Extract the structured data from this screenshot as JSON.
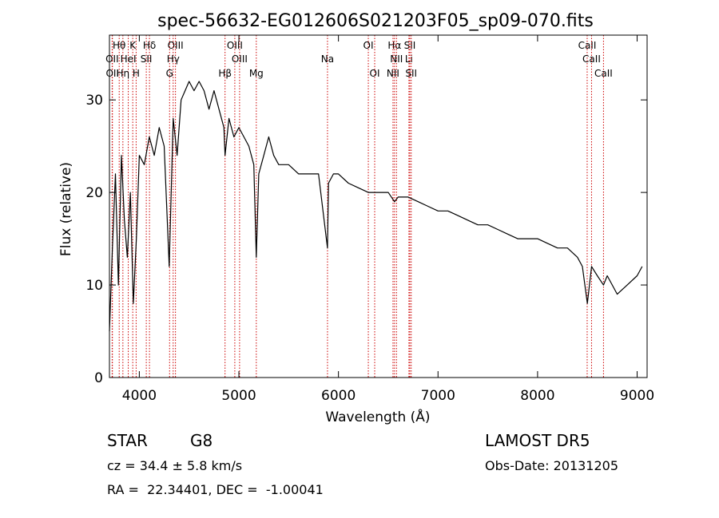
{
  "chart_data": {
    "type": "line",
    "title": "spec-56632-EG012606S021203F05_sp09-070.fits",
    "xlabel": "Wavelength (Å)",
    "ylabel": "Flux (relative)",
    "xlim": [
      3700,
      9100
    ],
    "ylim": [
      0,
      37
    ],
    "xticks": [
      4000,
      5000,
      6000,
      7000,
      8000,
      9000
    ],
    "yticks": [
      0,
      10,
      20,
      30
    ],
    "grid": false,
    "series": [
      {
        "x": [
          3700,
          3730,
          3760,
          3790,
          3820,
          3850,
          3880,
          3910,
          3940,
          3970,
          4000,
          4050,
          4100,
          4150,
          4200,
          4250,
          4300,
          4340,
          4380,
          4420,
          4460,
          4500,
          4550,
          4600,
          4650,
          4700,
          4750,
          4800,
          4850,
          4861,
          4900,
          4950,
          5000,
          5050,
          5100,
          5150,
          5175,
          5200,
          5250,
          5300,
          5350,
          5400,
          5500,
          5600,
          5700,
          5800,
          5890,
          5900,
          5950,
          6000,
          6100,
          6200,
          6300,
          6400,
          6500,
          6563,
          6600,
          6700,
          6800,
          6900,
          7000,
          7100,
          7200,
          7300,
          7400,
          7500,
          7600,
          7700,
          7800,
          7900,
          8000,
          8100,
          8200,
          8300,
          8400,
          8450,
          8500,
          8542,
          8600,
          8662,
          8700,
          8800,
          8900,
          9000,
          9050
        ],
        "y": [
          5,
          14,
          22,
          10,
          24,
          17,
          13,
          20,
          8,
          15,
          24,
          23,
          26,
          24,
          27,
          25,
          12,
          28,
          24,
          30,
          31,
          32,
          31,
          32,
          31,
          29,
          31,
          29,
          27,
          24,
          28,
          26,
          27,
          26,
          25,
          23,
          13,
          22,
          24,
          26,
          24,
          23,
          23,
          22,
          22,
          22,
          14,
          21,
          22,
          22,
          21,
          20.5,
          20,
          20,
          20,
          19,
          19.5,
          19.5,
          19,
          18.5,
          18,
          18,
          17.5,
          17,
          16.5,
          16.5,
          16,
          15.5,
          15,
          15,
          15,
          14.5,
          14,
          14,
          13,
          12,
          8,
          12,
          11,
          10,
          11,
          9,
          10,
          11,
          12
        ]
      }
    ],
    "spectral_lines": [
      {
        "label": "Hθ",
        "x": 3798,
        "row": 0
      },
      {
        "label": "K",
        "x": 3934,
        "row": 0
      },
      {
        "label": "Hδ",
        "x": 4102,
        "row": 0
      },
      {
        "label": "OIII",
        "x": 4363,
        "row": 0
      },
      {
        "label": "OIII",
        "x": 4959,
        "row": 0
      },
      {
        "label": "OI",
        "x": 6300,
        "row": 0
      },
      {
        "label": "Hα",
        "x": 6563,
        "row": 0
      },
      {
        "label": "SII",
        "x": 6717,
        "row": 0
      },
      {
        "label": "CaII",
        "x": 8498,
        "row": 0
      },
      {
        "label": "OII",
        "x": 3727,
        "row": 1
      },
      {
        "label": "HeI",
        "x": 3889,
        "row": 1
      },
      {
        "label": "SII",
        "x": 4070,
        "row": 1
      },
      {
        "label": "Hγ",
        "x": 4340,
        "row": 1
      },
      {
        "label": "OIII",
        "x": 5007,
        "row": 1
      },
      {
        "label": "Na",
        "x": 5890,
        "row": 1
      },
      {
        "label": "NII",
        "x": 6583,
        "row": 1
      },
      {
        "label": "Li",
        "x": 6708,
        "row": 1
      },
      {
        "label": "CaII",
        "x": 8542,
        "row": 1
      },
      {
        "label": "OII",
        "x": 3730,
        "row": 2
      },
      {
        "label": "Hη",
        "x": 3835,
        "row": 2
      },
      {
        "label": "H",
        "x": 3968,
        "row": 2
      },
      {
        "label": "G",
        "x": 4304,
        "row": 2
      },
      {
        "label": "Hβ",
        "x": 4861,
        "row": 2
      },
      {
        "label": "Mg",
        "x": 5175,
        "row": 2
      },
      {
        "label": "OI",
        "x": 6364,
        "row": 2
      },
      {
        "label": "NII",
        "x": 6548,
        "row": 2
      },
      {
        "label": "SII",
        "x": 6731,
        "row": 2
      },
      {
        "label": "CaII",
        "x": 8662,
        "row": 2
      }
    ],
    "line_color": "#cc0000"
  },
  "info": {
    "class": "STAR",
    "subclass": "G8",
    "cz": "cz = 34.4 ± 5.8 km/s",
    "coords": "RA =  22.34401, DEC =  -1.00041",
    "survey": "LAMOST DR5",
    "obs_date": "Obs-Date: 20131205"
  }
}
